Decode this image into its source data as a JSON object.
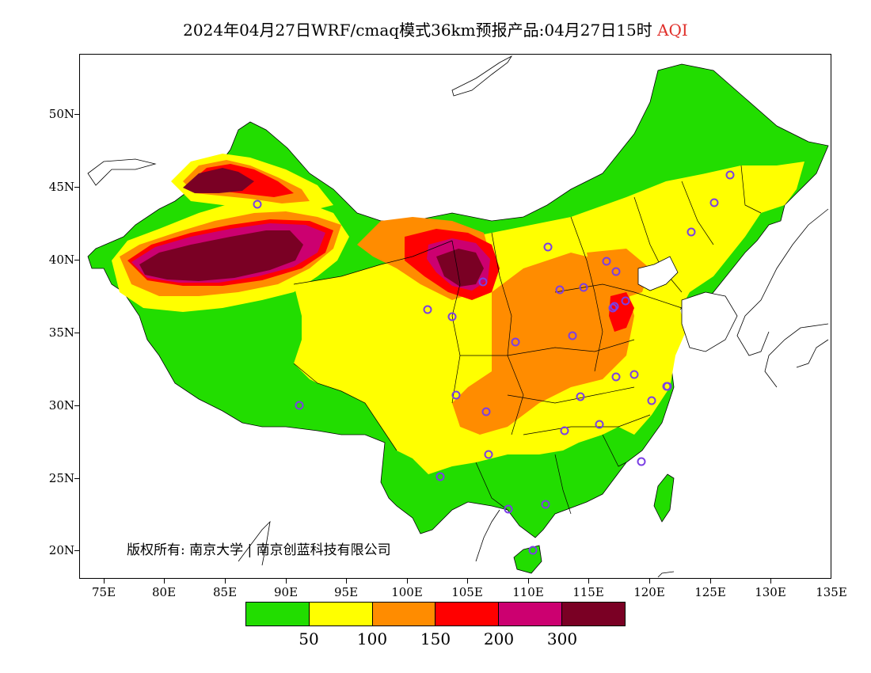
{
  "title": {
    "main": "2024年04月27日WRF/cmaq模式36km预报产品:04月27日15时",
    "variable": "AQI"
  },
  "axes": {
    "lat_labels": [
      "50N",
      "45N",
      "40N",
      "35N",
      "30N",
      "25N",
      "20N"
    ],
    "lon_labels": [
      "75E",
      "80E",
      "85E",
      "90E",
      "95E",
      "100E",
      "105E",
      "110E",
      "115E",
      "120E",
      "125E",
      "130E",
      "135E"
    ],
    "lon_range": [
      73,
      135
    ],
    "lat_range": [
      18,
      54
    ]
  },
  "copyright": "版权所有: 南京大学 | 南京创蓝科技有限公司",
  "legend": {
    "colors": [
      "#22dd00",
      "#ffff00",
      "#ff8c00",
      "#ff0000",
      "#cc0070",
      "#7a0024"
    ],
    "labels": [
      "50",
      "100",
      "150",
      "200",
      "300"
    ]
  },
  "colors": {
    "good": "#22dd00",
    "moderate": "#ffff00",
    "usg": "#ff8c00",
    "unhealthy": "#ff0000",
    "very_unhealthy": "#cc0070",
    "hazardous": "#7a0024",
    "city_marker": "#7b3fe4"
  }
}
